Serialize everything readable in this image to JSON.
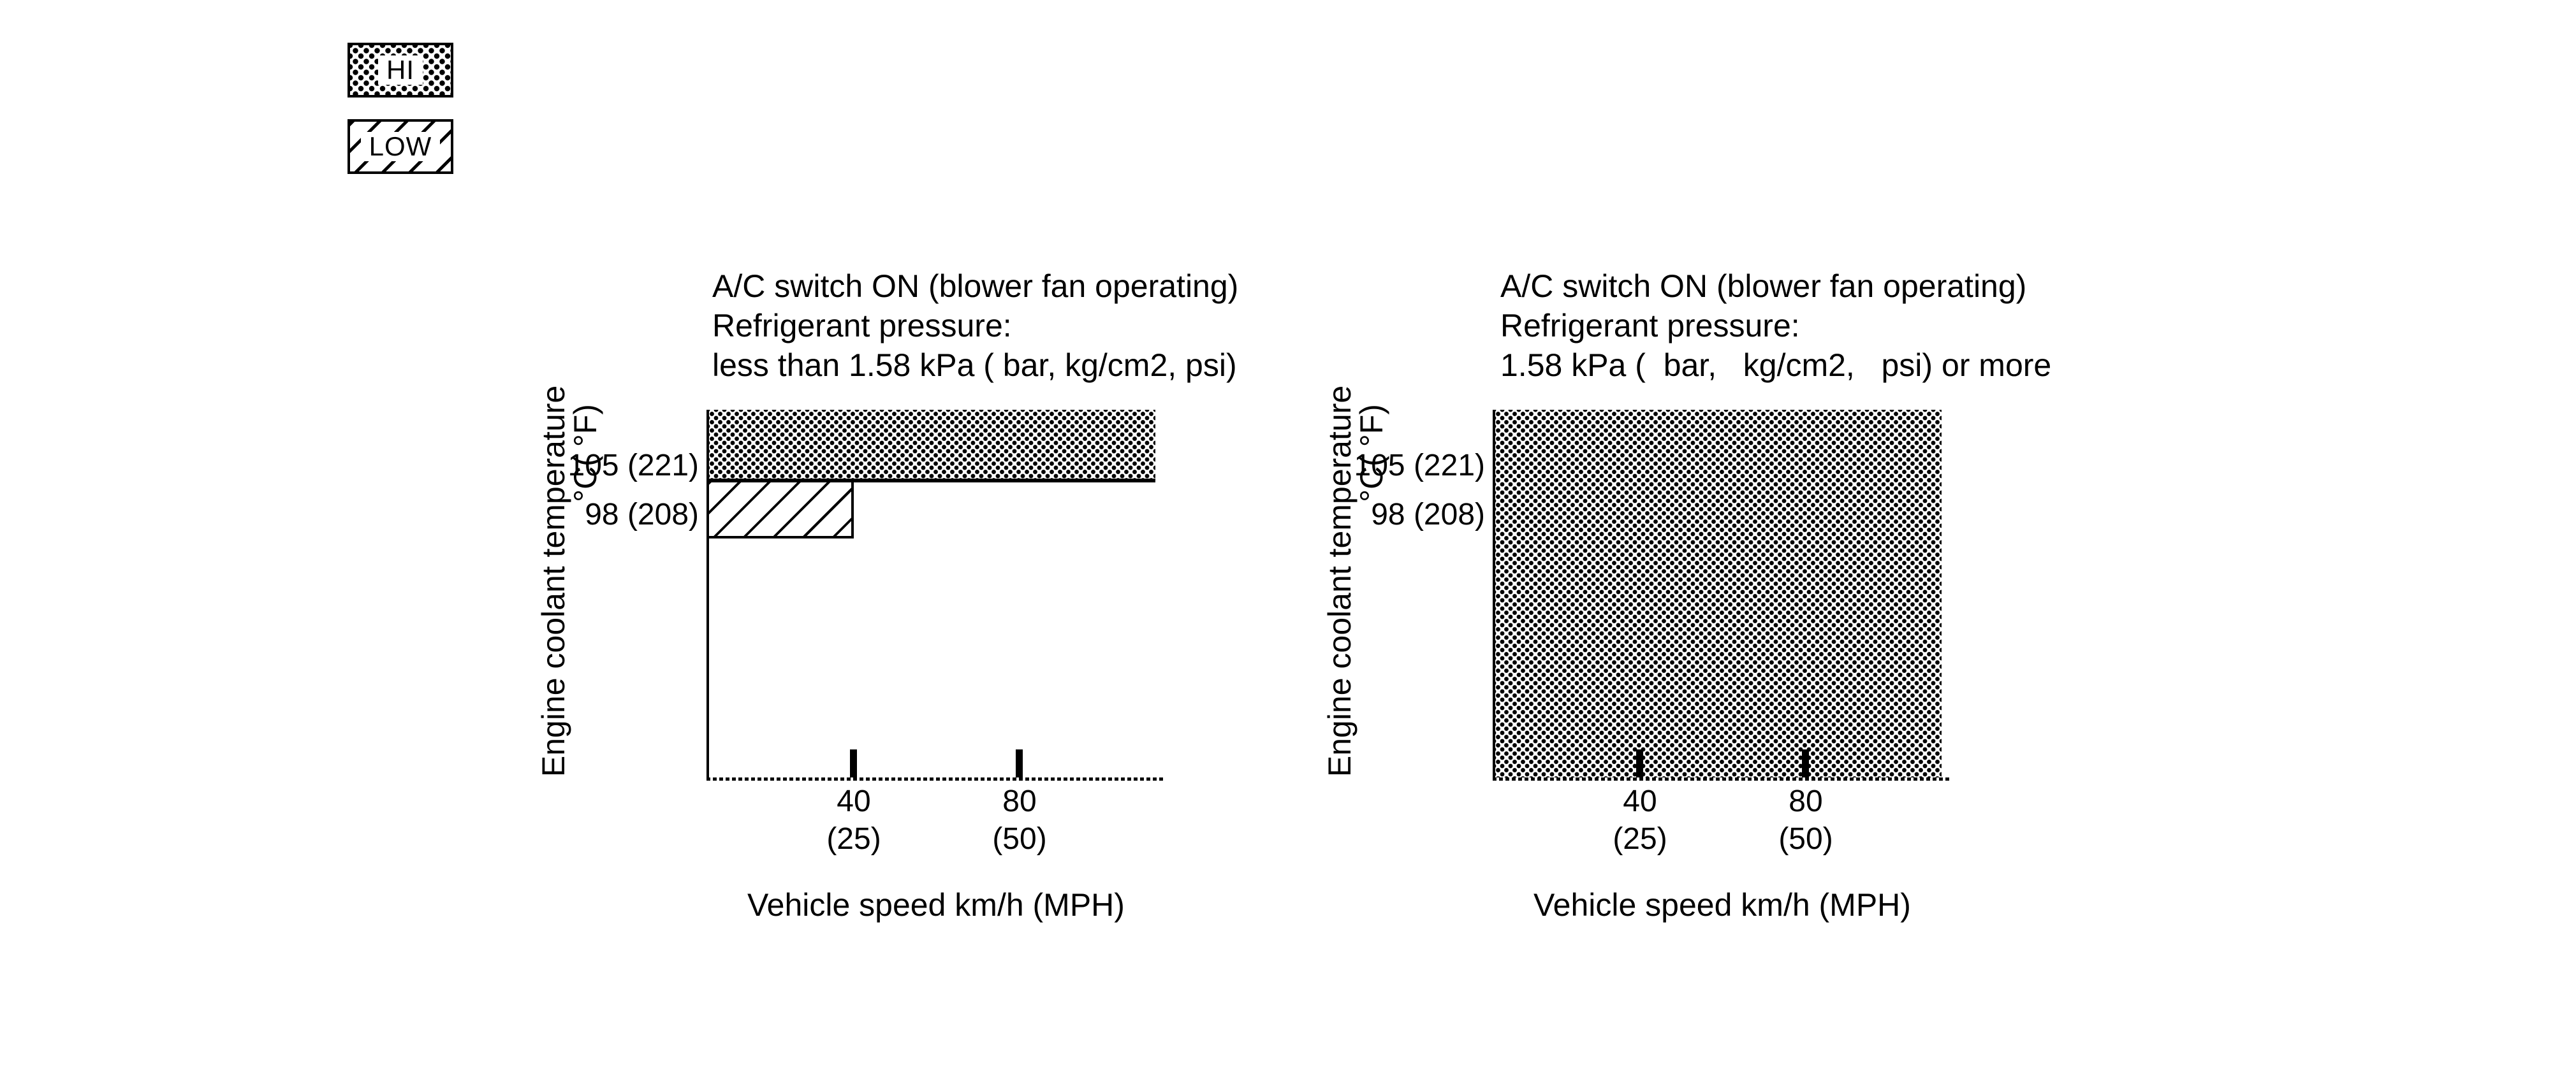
{
  "figure": {
    "background": "#ffffff",
    "ink": "#000000",
    "description_visible": "Two fan-operation area charts with HI / LOW pattern legend"
  },
  "legend": {
    "items": [
      {
        "label": "HI",
        "pattern": "dense-dots"
      },
      {
        "label": "LOW",
        "pattern": "diagonal-hatch"
      }
    ]
  },
  "charts": [
    {
      "title_lines": [
        "A/C switch ON (blower fan operating)",
        "Refrigerant pressure:",
        "less than 1.58 kPa ( bar, kg/cm2, psi)"
      ],
      "y_axis_label": "Engine coolant temperature",
      "y_axis_unit": "°C( °F)",
      "x_axis_label": "Vehicle speed km/h (MPH)"
    },
    {
      "title_lines": [
        "A/C switch ON (blower fan operating)",
        "Refrigerant pressure:",
        "1.58 kPa (  bar,   kg/cm2,   psi) or more"
      ],
      "y_axis_label": "Engine coolant temperature",
      "y_axis_unit": "°C( °F)",
      "x_axis_label": "Vehicle speed km/h (MPH)"
    }
  ],
  "chart_data": [
    {
      "type": "area",
      "title": "A/C switch ON (blower fan operating) Refrigerant pressure: less than 1.58 kPa ( bar, kg/cm2, psi)",
      "xlabel": "Vehicle speed km/h (MPH)",
      "ylabel": "Engine coolant temperature °C( °F)",
      "x_ticks": [
        {
          "kmh": "40",
          "mph": "(25)",
          "speed": 40
        },
        {
          "kmh": "80",
          "mph": "(50)",
          "speed": 80
        }
      ],
      "y_ticks": [
        {
          "label": "105 (221)",
          "c": 105,
          "f": 221
        },
        {
          "label": "98 (208)",
          "c": 98,
          "f": 208
        }
      ],
      "grid": false,
      "regions": [
        {
          "fan": "HI",
          "pattern": "dense-dots",
          "temp_c_min": 105,
          "temp_c_max": null,
          "speed_kmh_min": 0,
          "speed_kmh_max": null
        },
        {
          "fan": "LOW",
          "pattern": "diagonal-hatch",
          "temp_c_min": 98,
          "temp_c_max": 105,
          "speed_kmh_min": 0,
          "speed_kmh_max": 40
        }
      ]
    },
    {
      "type": "area",
      "title": "A/C switch ON (blower fan operating) Refrigerant pressure: 1.58 kPa ( bar, kg/cm2, psi) or more",
      "xlabel": "Vehicle speed km/h (MPH)",
      "ylabel": "Engine coolant temperature °C( °F)",
      "x_ticks": [
        {
          "kmh": "40",
          "mph": "(25)",
          "speed": 40
        },
        {
          "kmh": "80",
          "mph": "(50)",
          "speed": 80
        }
      ],
      "y_ticks": [
        {
          "label": "105 (221)",
          "c": 105,
          "f": 221
        },
        {
          "label": "98 (208)",
          "c": 98,
          "f": 208
        }
      ],
      "grid": false,
      "regions": [
        {
          "fan": "HI",
          "pattern": "dense-dots",
          "temp_c_min": null,
          "temp_c_max": null,
          "speed_kmh_min": 0,
          "speed_kmh_max": null
        }
      ]
    }
  ]
}
